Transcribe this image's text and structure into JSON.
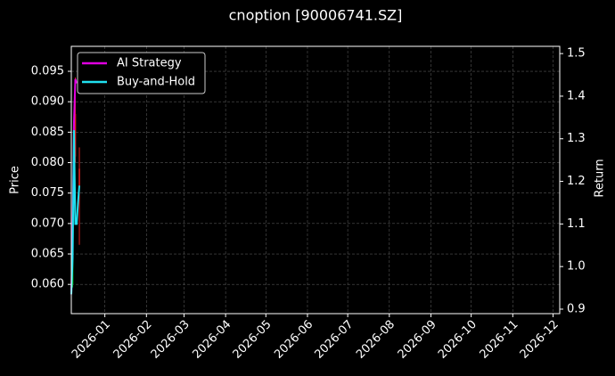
{
  "chart_data": {
    "type": "candlestick",
    "title": "cnoption [90006741.SZ]",
    "ylabel": "Price",
    "y2label": "Return",
    "xlim": [
      "2025-12-07",
      "2026-12-06"
    ],
    "xticks": [
      "2026-01",
      "2026-02",
      "2026-03",
      "2026-04",
      "2026-05",
      "2026-06",
      "2026-07",
      "2026-08",
      "2026-09",
      "2026-10",
      "2026-11",
      "2026-12"
    ],
    "ylim": [
      0.0552,
      0.0991
    ],
    "yticks": [
      {
        "value": 0.06,
        "label": "0.060"
      },
      {
        "value": 0.065,
        "label": "0.065"
      },
      {
        "value": 0.07,
        "label": "0.070"
      },
      {
        "value": 0.075,
        "label": "0.075"
      },
      {
        "value": 0.08,
        "label": "0.080"
      },
      {
        "value": 0.085,
        "label": "0.085"
      },
      {
        "value": 0.09,
        "label": "0.090"
      },
      {
        "value": 0.095,
        "label": "0.095"
      }
    ],
    "y2lim": [
      0.8895,
      1.517
    ],
    "y2ticks": [
      0.9,
      {
        "value": 1,
        "label": "1.0"
      },
      1.1,
      1.2,
      1.3,
      1.4,
      1.5
    ],
    "grid": true,
    "legend": "upper left",
    "candles": {
      "x": [
        "2025-12-08",
        "2025-12-10",
        "2025-12-13"
      ],
      "open": [
        0.06,
        0.088,
        0.079
      ],
      "high": [
        0.066,
        0.094,
        0.0825
      ],
      "low": [
        0.0595,
        0.08,
        0.0665
      ],
      "close": [
        0.065,
        0.081,
        0.076
      ],
      "up_color": "#00c800",
      "down_color": "#e02020"
    },
    "series": [
      {
        "name": "AI Strategy",
        "color": "#e000e0",
        "axis": "y2",
        "x": [
          "2025-12-07",
          "2025-12-08",
          "2025-12-09",
          "2025-12-10",
          "2025-12-11"
        ],
        "values": [
          0.935,
          1.08,
          1.34,
          1.44,
          1.43
        ]
      },
      {
        "name": "Buy-and-Hold",
        "color": "#20e0f0",
        "axis": "y2",
        "x": [
          "2025-12-07",
          "2025-12-08",
          "2025-12-09",
          "2025-12-10",
          "2025-12-11",
          "2025-12-12",
          "2025-12-13"
        ],
        "values": [
          0.935,
          1.02,
          1.32,
          1.1,
          1.1,
          1.15,
          1.19
        ]
      }
    ]
  }
}
